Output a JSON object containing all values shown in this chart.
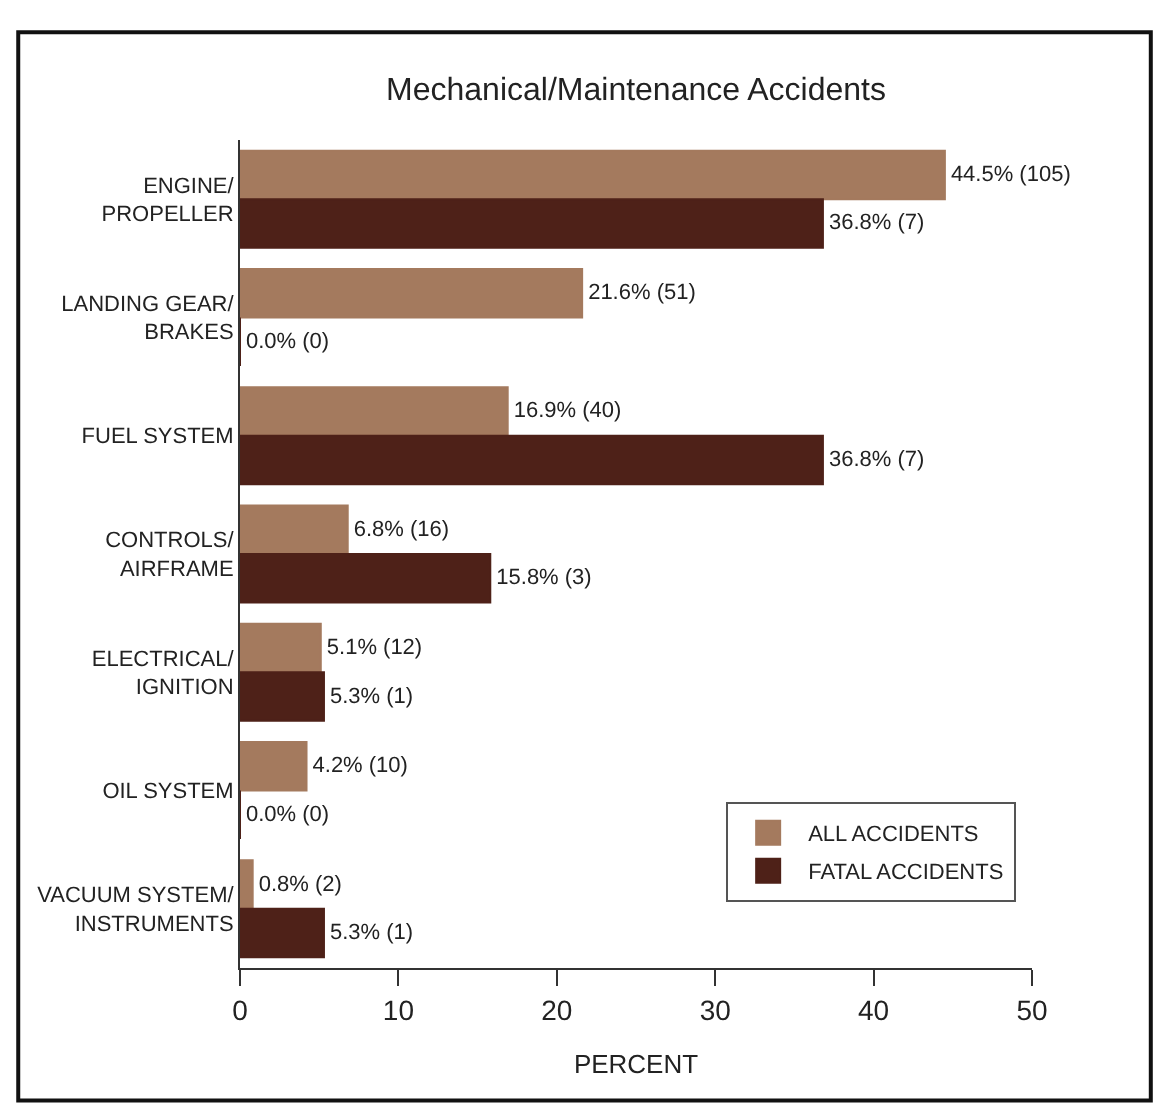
{
  "chart_data": {
    "type": "bar",
    "orientation": "horizontal",
    "title": "Mechanical/Maintenance Accidents",
    "xlabel": "PERCENT",
    "categories": [
      "ENGINE/\nPROPELLER",
      "LANDING GEAR/\nBRAKES",
      "FUEL SYSTEM",
      "CONTROLS/\nAIRFRAME",
      "ELECTRICAL/\nIGNITION",
      "OIL SYSTEM",
      "VACUUM SYSTEM/\nINSTRUMENTS"
    ],
    "series": [
      {
        "name": "ALL ACCIDENTS",
        "color": "#a47a5e",
        "values": [
          44.5,
          21.6,
          16.9,
          6.8,
          5.1,
          4.2,
          0.8
        ],
        "value_labels": [
          "44.5% (105)",
          "21.6% (51)",
          "16.9% (40)",
          "6.8% (16)",
          "5.1% (12)",
          "4.2% (10)",
          "0.8% (2)"
        ]
      },
      {
        "name": "FATAL ACCIDENTS",
        "color": "#4e2118",
        "values": [
          36.8,
          0.0,
          36.8,
          15.8,
          5.3,
          0.0,
          5.3
        ],
        "value_labels": [
          "36.8% (7)",
          "0.0% (0)",
          "36.8% (7)",
          "15.8% (3)",
          "5.3% (1)",
          "0.0% (0)",
          "5.3% (1)"
        ]
      }
    ],
    "xlim": [
      0,
      50
    ],
    "xticks": [
      0,
      10,
      20,
      30,
      40,
      50
    ],
    "legend": "bottom right"
  }
}
